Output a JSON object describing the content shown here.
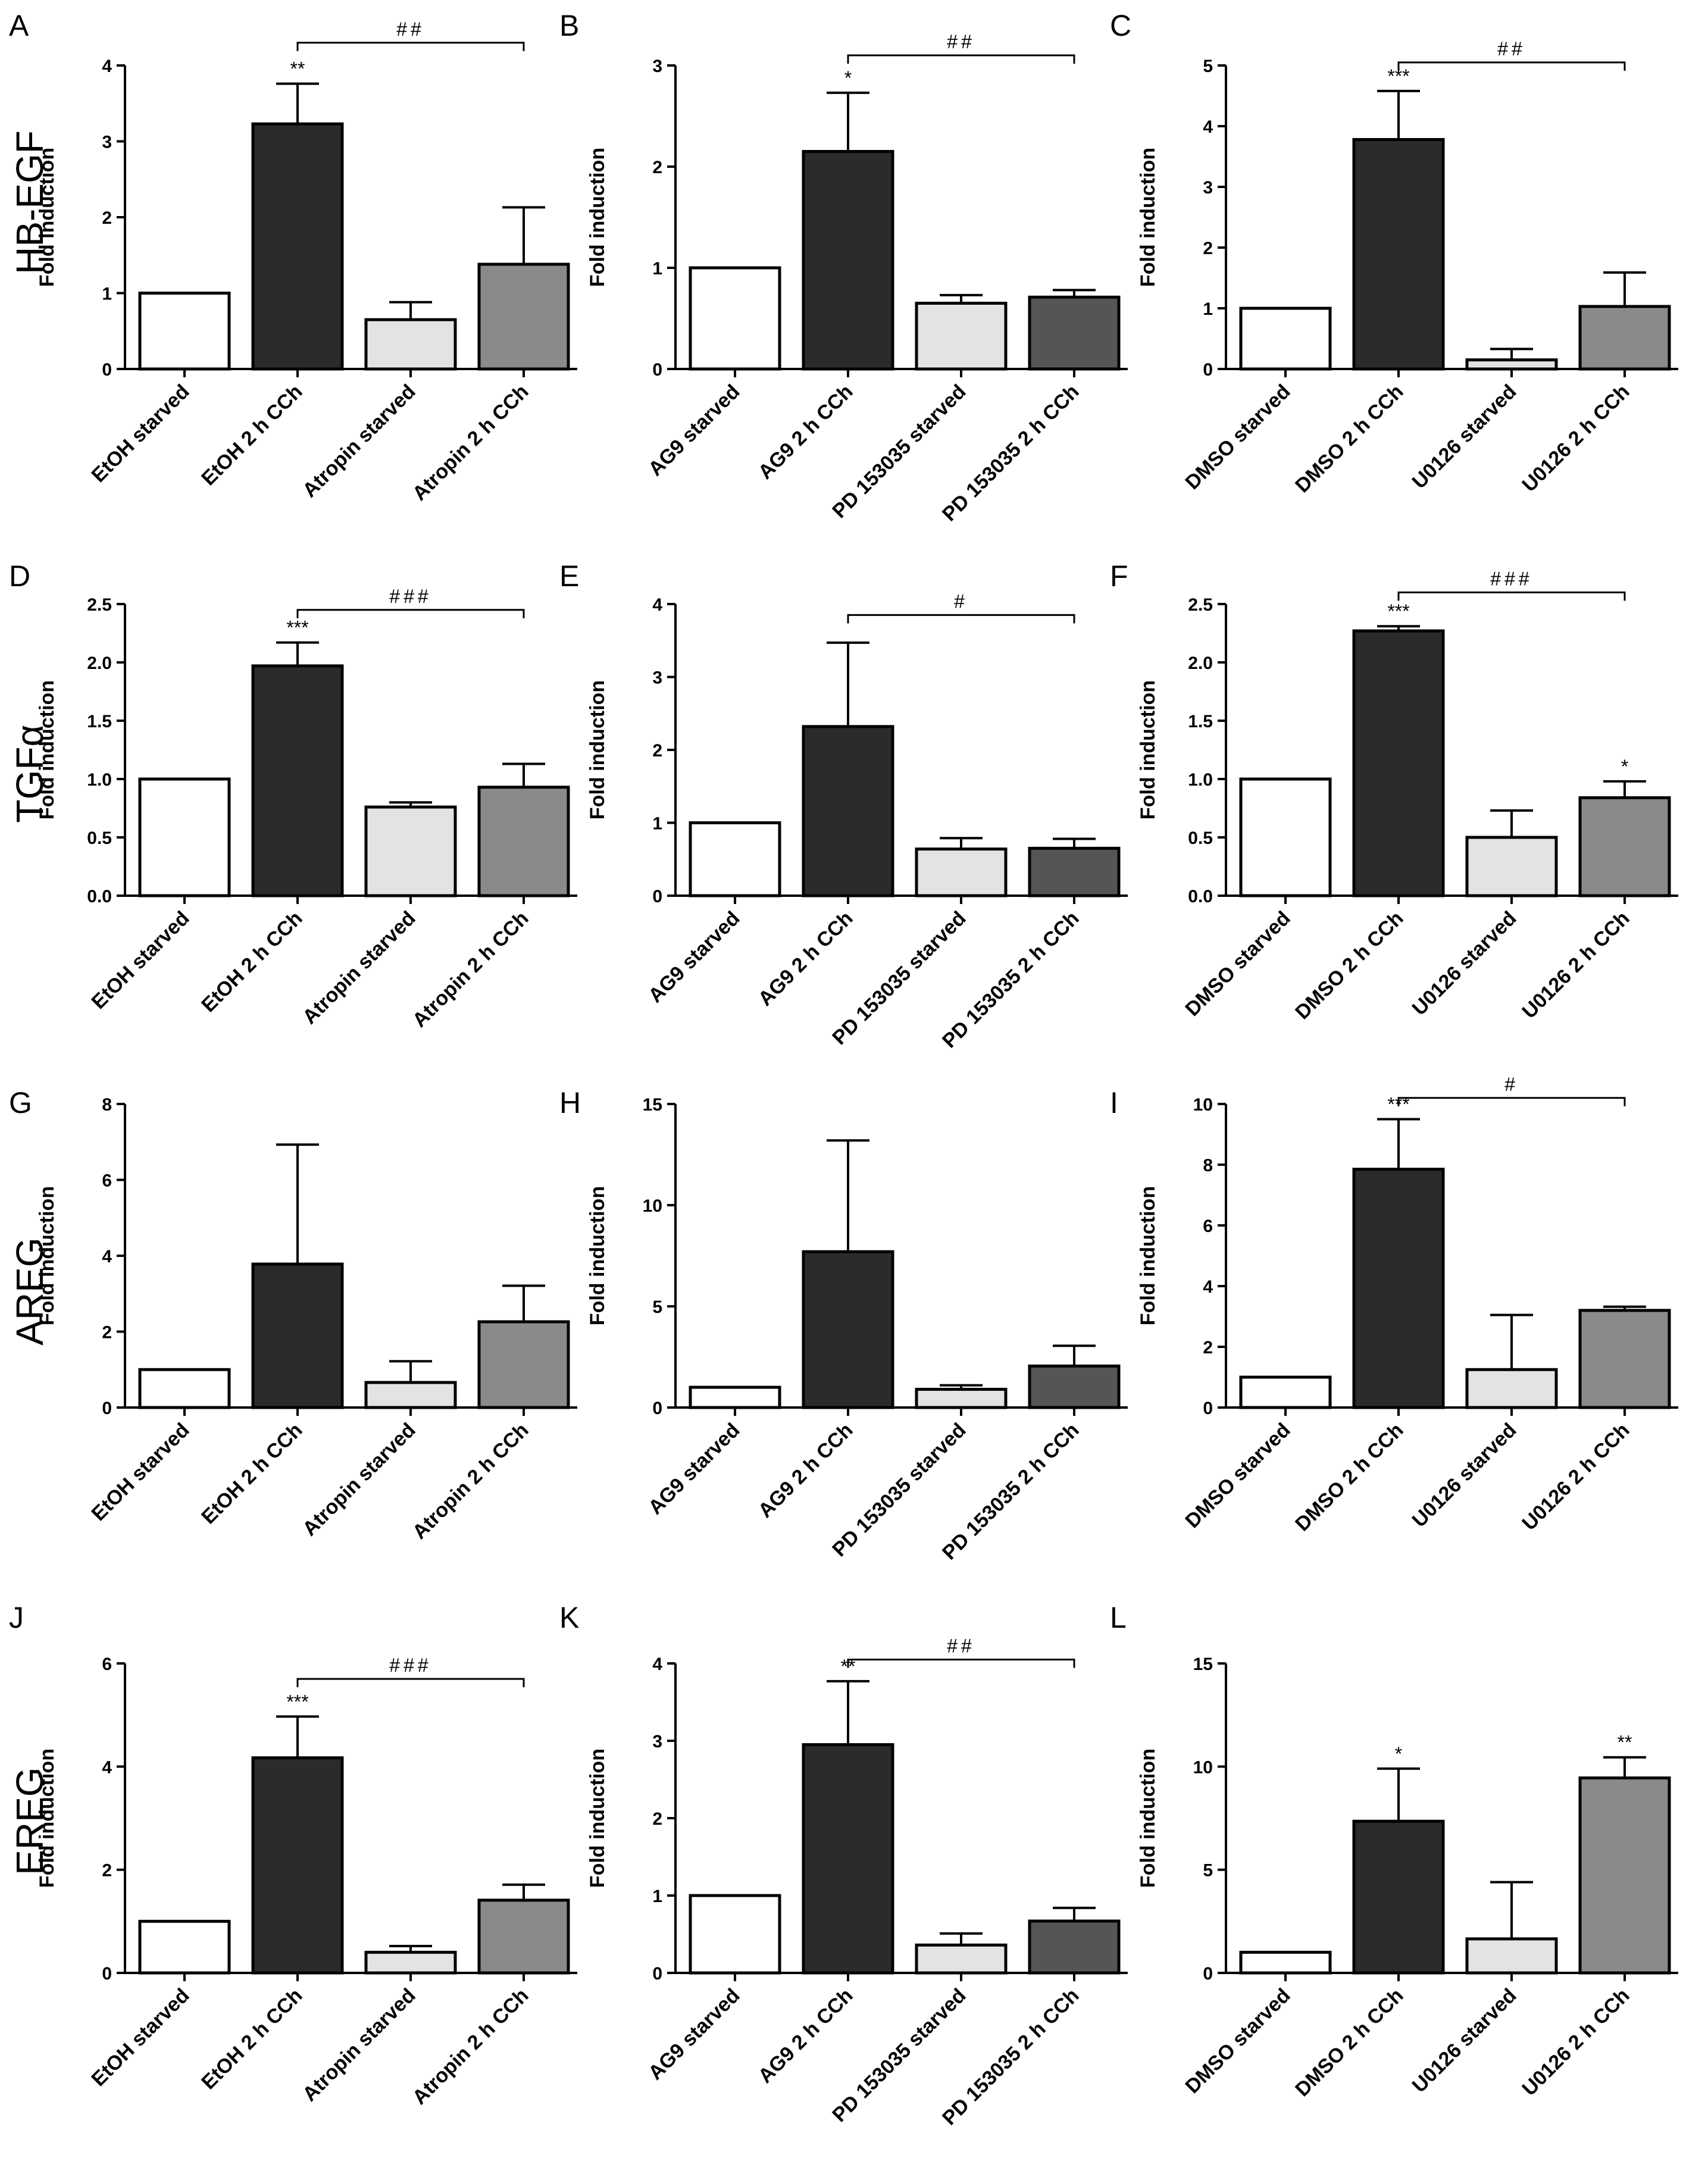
{
  "colors": {
    "white_bar": "#ffffff",
    "black_bar": "#2b2b2b",
    "light_gray_bar": "#e3e3e3",
    "gray_bar": "#8a8a8a",
    "dark_gray_bar": "#555555"
  },
  "row_labels": [
    "HB-EGF",
    "TGFα",
    "AREG",
    "EREG"
  ],
  "chart_data": [
    {
      "id": "A",
      "row": 0,
      "col": 0,
      "type": "bar",
      "letter": "A",
      "ylabel": "Fold induction",
      "ylim": [
        0,
        4
      ],
      "yticks": [
        "0",
        "1",
        "2",
        "3",
        "4"
      ],
      "tickvals": [
        0,
        1,
        2,
        3,
        4
      ],
      "categories": [
        "EtOH starved",
        "EtOH 2 h CCh",
        "Atropin starved",
        "Atropin 2 h CCh"
      ],
      "values": [
        1,
        3.23,
        0.65,
        1.38
      ],
      "errors": [
        0,
        0.53,
        0.23,
        0.75
      ],
      "fills": [
        "white_bar",
        "black_bar",
        "light_gray_bar",
        "gray_bar"
      ],
      "stars": [
        "",
        "**",
        "",
        ""
      ],
      "bracket": {
        "from": 1,
        "to": 3,
        "label": "##",
        "y": 4.3
      }
    },
    {
      "id": "B",
      "row": 0,
      "col": 1,
      "type": "bar",
      "letter": "B",
      "ylabel": "Fold induction",
      "ylim": [
        0,
        3
      ],
      "yticks": [
        "0",
        "1",
        "2",
        "3"
      ],
      "tickvals": [
        0,
        1,
        2,
        3
      ],
      "categories": [
        "AG9 starved",
        "AG9  2 h CCh",
        "PD 153035 starved",
        "PD 153035 2 h CCh"
      ],
      "values": [
        1,
        2.15,
        0.65,
        0.71
      ],
      "errors": [
        0,
        0.58,
        0.08,
        0.07
      ],
      "fills": [
        "white_bar",
        "black_bar",
        "light_gray_bar",
        "dark_gray_bar"
      ],
      "stars": [
        "",
        "*",
        "",
        ""
      ],
      "bracket": {
        "from": 1,
        "to": 3,
        "label": "##",
        "y": 3.1
      }
    },
    {
      "id": "C",
      "row": 0,
      "col": 2,
      "type": "bar",
      "letter": "C",
      "ylabel": "Fold induction",
      "ylim": [
        0,
        5
      ],
      "yticks": [
        "0",
        "1",
        "2",
        "3",
        "4",
        "5"
      ],
      "tickvals": [
        0,
        1,
        2,
        3,
        4,
        5
      ],
      "categories": [
        "DMSO starved",
        "DMSO 2 h CCh",
        "U0126 starved",
        "U0126 2 h CCh"
      ],
      "values": [
        1,
        3.78,
        0.15,
        1.03
      ],
      "errors": [
        0,
        0.8,
        0.18,
        0.56
      ],
      "fills": [
        "white_bar",
        "black_bar",
        "light_gray_bar",
        "gray_bar"
      ],
      "stars": [
        "",
        "***",
        "",
        ""
      ],
      "bracket": {
        "from": 1,
        "to": 3,
        "label": "##",
        "y": 5.05
      }
    },
    {
      "id": "D",
      "row": 1,
      "col": 0,
      "type": "bar",
      "letter": "D",
      "ylabel": "Fold induction",
      "ylim": [
        0,
        2.5
      ],
      "yticks": [
        "0.0",
        "0.5",
        "1.0",
        "1.5",
        "2.0",
        "2.5"
      ],
      "tickvals": [
        0,
        0.5,
        1,
        1.5,
        2,
        2.5
      ],
      "categories": [
        "EtOH starved",
        "EtOH 2 h CCh",
        "Atropin starved",
        "Atropin 2 h CCh"
      ],
      "values": [
        1,
        1.97,
        0.76,
        0.93
      ],
      "errors": [
        0,
        0.2,
        0.04,
        0.2
      ],
      "fills": [
        "white_bar",
        "black_bar",
        "light_gray_bar",
        "gray_bar"
      ],
      "stars": [
        "",
        "***",
        "",
        ""
      ],
      "bracket": {
        "from": 1,
        "to": 3,
        "label": "###",
        "y": 2.45
      }
    },
    {
      "id": "E",
      "row": 1,
      "col": 1,
      "type": "bar",
      "letter": "E",
      "ylabel": "Fold induction",
      "ylim": [
        0,
        4
      ],
      "yticks": [
        "0",
        "1",
        "2",
        "3",
        "4"
      ],
      "tickvals": [
        0,
        1,
        2,
        3,
        4
      ],
      "categories": [
        "AG9 starved",
        "AG9  2 h CCh",
        "PD 153035 starved",
        "PD 153035 2 h CCh"
      ],
      "values": [
        1,
        2.32,
        0.64,
        0.65
      ],
      "errors": [
        0,
        1.15,
        0.15,
        0.13
      ],
      "fills": [
        "white_bar",
        "black_bar",
        "light_gray_bar",
        "dark_gray_bar"
      ],
      "stars": [
        "",
        "",
        "",
        ""
      ],
      "bracket": {
        "from": 1,
        "to": 3,
        "label": "#",
        "y": 3.85
      }
    },
    {
      "id": "F",
      "row": 1,
      "col": 2,
      "type": "bar",
      "letter": "F",
      "ylabel": "Fold induction",
      "ylim": [
        0,
        2.5
      ],
      "yticks": [
        "0.0",
        "0.5",
        "1.0",
        "1.5",
        "2.0",
        "2.5"
      ],
      "tickvals": [
        0,
        0.5,
        1,
        1.5,
        2,
        2.5
      ],
      "categories": [
        "DMSO starved",
        "DMSO 2 h CCh",
        "U0126 starved",
        "U0126 2 h CCh"
      ],
      "values": [
        1,
        2.27,
        0.5,
        0.84
      ],
      "errors": [
        0,
        0.04,
        0.23,
        0.14
      ],
      "fills": [
        "white_bar",
        "black_bar",
        "light_gray_bar",
        "gray_bar"
      ],
      "stars": [
        "",
        "***",
        "",
        "*"
      ],
      "bracket": {
        "from": 1,
        "to": 3,
        "label": "###",
        "y": 2.6
      }
    },
    {
      "id": "G",
      "row": 2,
      "col": 0,
      "type": "bar",
      "letter": "G",
      "ylabel": "Fold induction",
      "ylim": [
        0,
        8
      ],
      "yticks": [
        "0",
        "2",
        "4",
        "6",
        "8"
      ],
      "tickvals": [
        0,
        2,
        4,
        6,
        8
      ],
      "categories": [
        "EtOH starved",
        "EtOH 2 h CCh",
        "Atropin starved",
        "Atropin 2 h CCh"
      ],
      "values": [
        1,
        3.78,
        0.66,
        2.26
      ],
      "errors": [
        0,
        3.15,
        0.56,
        0.95
      ],
      "fills": [
        "white_bar",
        "black_bar",
        "light_gray_bar",
        "gray_bar"
      ],
      "stars": [
        "",
        "",
        "",
        ""
      ],
      "bracket": null
    },
    {
      "id": "H",
      "row": 2,
      "col": 1,
      "type": "bar",
      "letter": "H",
      "ylabel": "Fold induction",
      "ylim": [
        0,
        15
      ],
      "yticks": [
        "0",
        "5",
        "10",
        "15"
      ],
      "tickvals": [
        0,
        5,
        10,
        15
      ],
      "categories": [
        "AG9 starved",
        "AG9  2 h CCh",
        "PD 153035 starved",
        "PD 153035 2 h CCh"
      ],
      "values": [
        1,
        7.7,
        0.9,
        2.05
      ],
      "errors": [
        0,
        5.5,
        0.2,
        1.0
      ],
      "fills": [
        "white_bar",
        "black_bar",
        "light_gray_bar",
        "dark_gray_bar"
      ],
      "stars": [
        "",
        "",
        "",
        ""
      ],
      "bracket": null
    },
    {
      "id": "I",
      "row": 2,
      "col": 2,
      "type": "bar",
      "letter": "I",
      "ylabel": "Fold induction",
      "ylim": [
        0,
        10
      ],
      "yticks": [
        "0",
        "2",
        "4",
        "6",
        "8",
        "10"
      ],
      "tickvals": [
        0,
        2,
        4,
        6,
        8,
        10
      ],
      "categories": [
        "DMSO starved",
        "DMSO 2 h CCh",
        "U0126 starved",
        "U0126 2 h CCh"
      ],
      "values": [
        1,
        7.85,
        1.25,
        3.2
      ],
      "errors": [
        0,
        1.65,
        1.8,
        0.12
      ],
      "fills": [
        "white_bar",
        "black_bar",
        "light_gray_bar",
        "gray_bar"
      ],
      "stars": [
        "",
        "***",
        "",
        ""
      ],
      "bracket": {
        "from": 1,
        "to": 3,
        "label": "#",
        "y": 10.2
      }
    },
    {
      "id": "J",
      "row": 3,
      "col": 0,
      "type": "bar",
      "letter": "J",
      "ylabel": "Fold induction",
      "ylim": [
        0,
        6
      ],
      "yticks": [
        "0",
        "2",
        "4",
        "6"
      ],
      "tickvals": [
        0,
        2,
        4,
        6
      ],
      "categories": [
        "EtOH starved",
        "EtOH 2 h CCh",
        "Atropin starved",
        "Atropin 2 h CCh"
      ],
      "values": [
        1,
        4.17,
        0.4,
        1.41
      ],
      "errors": [
        0,
        0.8,
        0.12,
        0.3
      ],
      "fills": [
        "white_bar",
        "black_bar",
        "light_gray_bar",
        "gray_bar"
      ],
      "stars": [
        "",
        "***",
        "",
        ""
      ],
      "bracket": {
        "from": 1,
        "to": 3,
        "label": "###",
        "y": 5.7
      }
    },
    {
      "id": "K",
      "row": 3,
      "col": 1,
      "type": "bar",
      "letter": "K",
      "ylabel": "Fold induction",
      "ylim": [
        0,
        4
      ],
      "yticks": [
        "0",
        "1",
        "2",
        "3",
        "4"
      ],
      "tickvals": [
        0,
        1,
        2,
        3,
        4
      ],
      "categories": [
        "AG9 starved",
        "AG9  2 h CCh",
        "PD 153035 starved",
        "PD 153035 2 h CCh"
      ],
      "values": [
        1,
        2.95,
        0.36,
        0.67
      ],
      "errors": [
        0,
        0.82,
        0.15,
        0.17
      ],
      "fills": [
        "white_bar",
        "black_bar",
        "light_gray_bar",
        "dark_gray_bar"
      ],
      "stars": [
        "",
        "**",
        "",
        ""
      ],
      "bracket": {
        "from": 1,
        "to": 3,
        "label": "##",
        "y": 4.05
      }
    },
    {
      "id": "L",
      "row": 3,
      "col": 2,
      "type": "bar",
      "letter": "L",
      "ylabel": "Fold induction",
      "ylim": [
        0,
        15
      ],
      "yticks": [
        "0",
        "5",
        "10",
        "15"
      ],
      "tickvals": [
        0,
        5,
        10,
        15
      ],
      "categories": [
        "DMSO starved",
        "DMSO 2 h CCh",
        "U0126 starved",
        "U0126 2 h CCh"
      ],
      "values": [
        1,
        7.35,
        1.65,
        9.45
      ],
      "errors": [
        0,
        2.55,
        2.75,
        1.0
      ],
      "fills": [
        "white_bar",
        "black_bar",
        "light_gray_bar",
        "gray_bar"
      ],
      "stars": [
        "",
        "*",
        "",
        "**"
      ],
      "bracket": null
    }
  ]
}
